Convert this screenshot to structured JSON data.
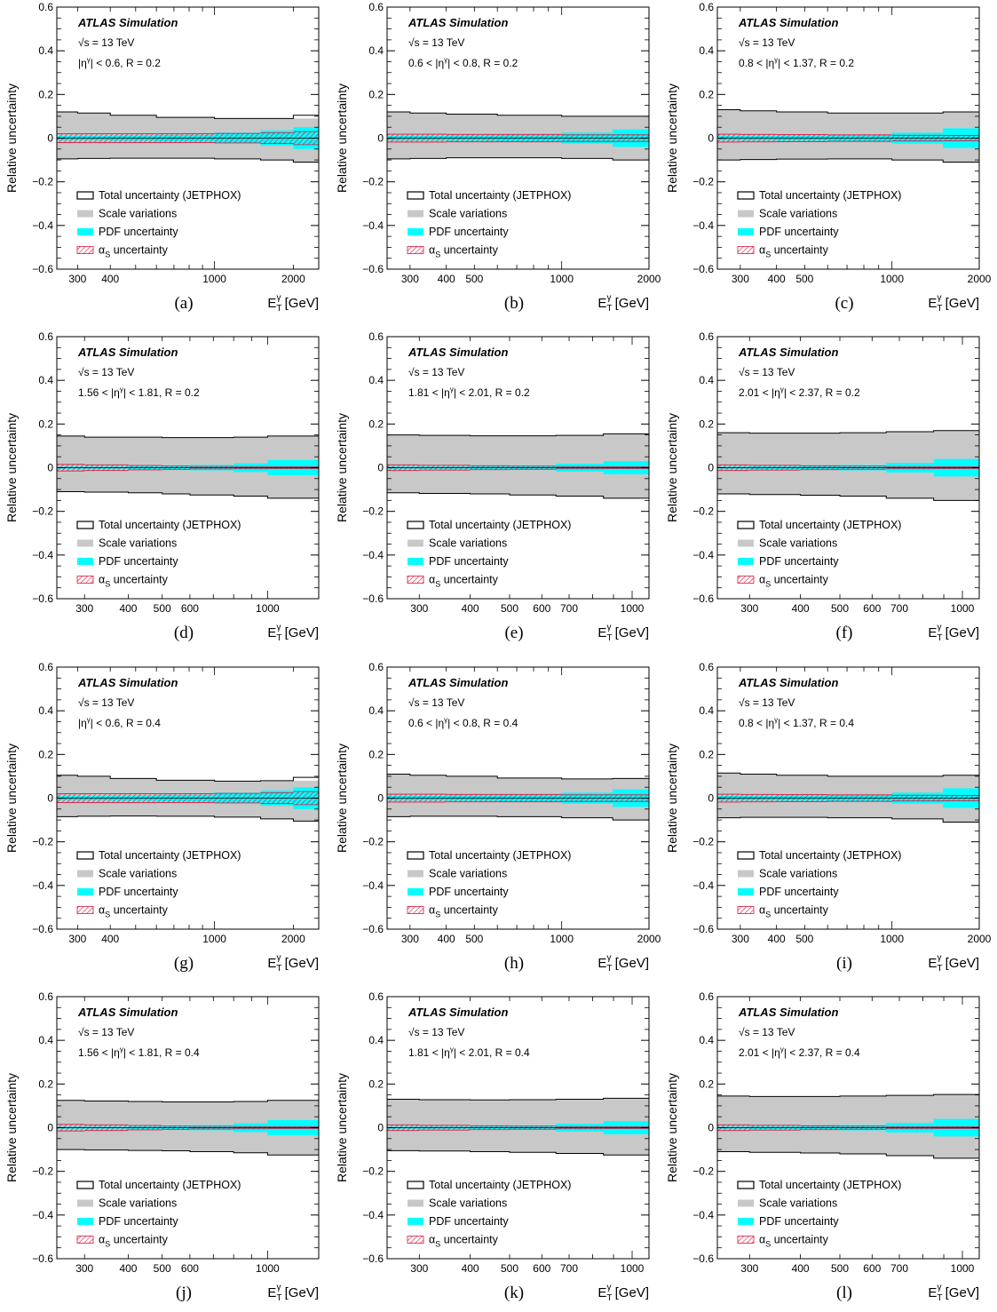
{
  "figure": {
    "label_ylabel": "Relative uncertainty",
    "atlas_label": "ATLAS Simulation",
    "energy_label": "√s = 13 TeV",
    "xlabel_main": "E",
    "xlabel_sub": "T",
    "xlabel_sup": "γ",
    "xlabel_unit": "[GeV]",
    "legend": {
      "total": "Total uncertainty (JETPHOX)",
      "scale": "Scale variations",
      "pdf": "PDF uncertainty",
      "alphas_main": "α",
      "alphas_sub": "S",
      "alphas_rest": "uncertainty"
    },
    "colors": {
      "scale": "#c8c8c8",
      "pdf": "#00ffff",
      "alphas": "#dc143c",
      "total": "#000000"
    }
  },
  "chart_data": [
    {
      "type": "area",
      "panel": "(a)",
      "region": "|η^γ| < 0.6, R = 0.2",
      "region_parts": [
        "|η",
        "γ",
        "| < 0.6, R = 0.2"
      ],
      "xscale": "log",
      "xlim": [
        250,
        2500
      ],
      "ylim": [
        -0.6,
        0.6
      ],
      "xticks": [
        300,
        400,
        1000,
        2000
      ],
      "xticklabels": [
        "300",
        "400",
        "1000",
        "2000"
      ],
      "bin_edges": [
        250,
        300,
        400,
        600,
        1000,
        1500,
        2000,
        2500
      ],
      "total_up": [
        0.12,
        0.115,
        0.105,
        0.095,
        0.09,
        0.09,
        0.105
      ],
      "total_down": [
        -0.095,
        -0.093,
        -0.092,
        -0.092,
        -0.095,
        -0.1,
        -0.11
      ],
      "scale_up": [
        0.12,
        0.115,
        0.105,
        0.095,
        0.09,
        0.09,
        0.09
      ],
      "scale_down": [
        -0.095,
        -0.093,
        -0.092,
        -0.092,
        -0.095,
        -0.1,
        -0.11
      ],
      "pdf": [
        0.01,
        0.01,
        0.012,
        0.015,
        0.025,
        0.035,
        0.05
      ],
      "alphas": [
        0.02,
        0.02,
        0.02,
        0.02,
        0.022,
        0.025,
        0.03
      ]
    },
    {
      "type": "area",
      "panel": "(b)",
      "region": "0.6 < |η^γ| < 0.8, R = 0.2",
      "region_parts": [
        "0.6 < |η",
        "γ",
        "| < 0.8, R = 0.2"
      ],
      "xscale": "log",
      "xlim": [
        250,
        2000
      ],
      "ylim": [
        -0.6,
        0.6
      ],
      "xticks": [
        300,
        400,
        500,
        1000,
        2000
      ],
      "xticklabels": [
        "300",
        "400",
        "500",
        "1000",
        "2000"
      ],
      "bin_edges": [
        250,
        300,
        400,
        600,
        1000,
        1500,
        2000
      ],
      "total_up": [
        0.12,
        0.115,
        0.11,
        0.105,
        0.1,
        0.1
      ],
      "total_down": [
        -0.095,
        -0.093,
        -0.09,
        -0.09,
        -0.093,
        -0.1
      ],
      "scale_up": [
        0.12,
        0.115,
        0.11,
        0.105,
        0.1,
        0.1
      ],
      "scale_down": [
        -0.095,
        -0.093,
        -0.09,
        -0.09,
        -0.093,
        -0.1
      ],
      "pdf": [
        0.01,
        0.01,
        0.012,
        0.015,
        0.025,
        0.04
      ],
      "alphas": [
        0.018,
        0.018,
        0.017,
        0.017,
        0.015,
        0.015
      ]
    },
    {
      "type": "area",
      "panel": "(c)",
      "region": "0.8 < |η^γ| < 1.37, R = 0.2",
      "region_parts": [
        "0.8 < |η",
        "γ",
        "| < 1.37, R = 0.2"
      ],
      "xscale": "log",
      "xlim": [
        250,
        2000
      ],
      "ylim": [
        -0.6,
        0.6
      ],
      "xticks": [
        300,
        400,
        500,
        1000,
        2000
      ],
      "xticklabels": [
        "300",
        "400",
        "500",
        "1000",
        "2000"
      ],
      "bin_edges": [
        250,
        300,
        400,
        600,
        1000,
        1500,
        2000
      ],
      "total_up": [
        0.13,
        0.125,
        0.12,
        0.115,
        0.115,
        0.12
      ],
      "total_down": [
        -0.1,
        -0.098,
        -0.096,
        -0.095,
        -0.1,
        -0.11
      ],
      "scale_up": [
        0.13,
        0.125,
        0.12,
        0.115,
        0.115,
        0.12
      ],
      "scale_down": [
        -0.1,
        -0.098,
        -0.096,
        -0.095,
        -0.1,
        -0.11
      ],
      "pdf": [
        0.01,
        0.01,
        0.012,
        0.015,
        0.025,
        0.045
      ],
      "alphas": [
        0.018,
        0.017,
        0.016,
        0.015,
        0.013,
        0.012
      ]
    },
    {
      "type": "area",
      "panel": "(d)",
      "region": "1.56 < |η^γ| < 1.81, R = 0.2",
      "region_parts": [
        "1.56 < |η",
        "γ",
        "| < 1.81, R = 0.2"
      ],
      "xscale": "log",
      "xlim": [
        250,
        1400
      ],
      "ylim": [
        -0.6,
        0.6
      ],
      "xticks": [
        300,
        400,
        500,
        600,
        1000
      ],
      "xticklabels": [
        "300",
        "400",
        "500",
        "600",
        "1000"
      ],
      "bin_edges": [
        250,
        300,
        400,
        500,
        600,
        800,
        1000,
        1400
      ],
      "total_up": [
        0.145,
        0.14,
        0.14,
        0.138,
        0.138,
        0.14,
        0.145
      ],
      "total_down": [
        -0.11,
        -0.112,
        -0.115,
        -0.12,
        -0.125,
        -0.13,
        -0.14
      ],
      "scale_up": [
        0.145,
        0.14,
        0.14,
        0.138,
        0.138,
        0.14,
        0.145
      ],
      "scale_down": [
        -0.11,
        -0.112,
        -0.115,
        -0.12,
        -0.125,
        -0.13,
        -0.14
      ],
      "pdf": [
        0.005,
        0.005,
        0.006,
        0.008,
        0.012,
        0.02,
        0.035
      ],
      "alphas": [
        0.015,
        0.013,
        0.01,
        0.008,
        0.006,
        0.005,
        0.004
      ]
    },
    {
      "type": "area",
      "panel": "(e)",
      "region": "1.81 < |η^γ| < 2.01, R = 0.2",
      "region_parts": [
        "1.81 < |η",
        "γ",
        "| < 2.01, R = 0.2"
      ],
      "xscale": "log",
      "xlim": [
        250,
        1100
      ],
      "ylim": [
        -0.6,
        0.6
      ],
      "xticks": [
        300,
        400,
        500,
        600,
        700,
        1000
      ],
      "xticklabels": [
        "300",
        "400",
        "500",
        "600",
        "700",
        "1000"
      ],
      "bin_edges": [
        250,
        300,
        400,
        500,
        650,
        850,
        1100
      ],
      "total_up": [
        0.15,
        0.148,
        0.146,
        0.146,
        0.148,
        0.155
      ],
      "total_down": [
        -0.115,
        -0.118,
        -0.12,
        -0.125,
        -0.13,
        -0.14
      ],
      "scale_up": [
        0.15,
        0.148,
        0.146,
        0.146,
        0.148,
        0.155
      ],
      "scale_down": [
        -0.115,
        -0.118,
        -0.12,
        -0.125,
        -0.13,
        -0.14
      ],
      "pdf": [
        0.005,
        0.005,
        0.006,
        0.01,
        0.018,
        0.03
      ],
      "alphas": [
        0.013,
        0.011,
        0.009,
        0.007,
        0.005,
        0.004
      ]
    },
    {
      "type": "area",
      "panel": "(f)",
      "region": "2.01 < |η^γ| < 2.37, R = 0.2",
      "region_parts": [
        "2.01 < |η",
        "γ",
        "| < 2.37, R = 0.2"
      ],
      "xscale": "log",
      "xlim": [
        250,
        1100
      ],
      "ylim": [
        -0.6,
        0.6
      ],
      "xticks": [
        300,
        400,
        500,
        600,
        700,
        1000
      ],
      "xticklabels": [
        "300",
        "400",
        "500",
        "600",
        "700",
        "1000"
      ],
      "bin_edges": [
        250,
        300,
        400,
        500,
        650,
        850,
        1100
      ],
      "total_up": [
        0.16,
        0.158,
        0.158,
        0.16,
        0.165,
        0.17
      ],
      "total_down": [
        -0.12,
        -0.123,
        -0.126,
        -0.13,
        -0.14,
        -0.15
      ],
      "scale_up": [
        0.16,
        0.158,
        0.158,
        0.16,
        0.165,
        0.17
      ],
      "scale_down": [
        -0.12,
        -0.123,
        -0.126,
        -0.13,
        -0.14,
        -0.15
      ],
      "pdf": [
        0.005,
        0.006,
        0.008,
        0.012,
        0.022,
        0.04
      ],
      "alphas": [
        0.013,
        0.011,
        0.009,
        0.007,
        0.005,
        0.004
      ]
    },
    {
      "type": "area",
      "panel": "(g)",
      "region": "|η^γ| < 0.6, R = 0.4",
      "region_parts": [
        "|η",
        "γ",
        "| < 0.6, R = 0.4"
      ],
      "xscale": "log",
      "xlim": [
        250,
        2500
      ],
      "ylim": [
        -0.6,
        0.6
      ],
      "xticks": [
        300,
        400,
        1000,
        2000
      ],
      "xticklabels": [
        "300",
        "400",
        "1000",
        "2000"
      ],
      "bin_edges": [
        250,
        300,
        400,
        600,
        1000,
        1500,
        2000,
        2500
      ],
      "total_up": [
        0.105,
        0.1,
        0.09,
        0.082,
        0.078,
        0.08,
        0.095
      ],
      "total_down": [
        -0.085,
        -0.083,
        -0.082,
        -0.083,
        -0.087,
        -0.095,
        -0.105
      ],
      "scale_up": [
        0.105,
        0.1,
        0.09,
        0.082,
        0.078,
        0.078,
        0.08
      ],
      "scale_down": [
        -0.085,
        -0.083,
        -0.082,
        -0.083,
        -0.087,
        -0.095,
        -0.105
      ],
      "pdf": [
        0.01,
        0.01,
        0.012,
        0.015,
        0.025,
        0.035,
        0.05
      ],
      "alphas": [
        0.02,
        0.02,
        0.02,
        0.02,
        0.022,
        0.025,
        0.03
      ]
    },
    {
      "type": "area",
      "panel": "(h)",
      "region": "0.6 < |η^γ| < 0.8, R = 0.4",
      "region_parts": [
        "0.6 < |η",
        "γ",
        "| < 0.8, R = 0.4"
      ],
      "xscale": "log",
      "xlim": [
        250,
        2000
      ],
      "ylim": [
        -0.6,
        0.6
      ],
      "xticks": [
        300,
        400,
        500,
        1000,
        2000
      ],
      "xticklabels": [
        "300",
        "400",
        "500",
        "1000",
        "2000"
      ],
      "bin_edges": [
        250,
        300,
        400,
        600,
        1000,
        1500,
        2000
      ],
      "total_up": [
        0.11,
        0.105,
        0.1,
        0.092,
        0.088,
        0.09
      ],
      "total_down": [
        -0.085,
        -0.083,
        -0.083,
        -0.085,
        -0.09,
        -0.1
      ],
      "scale_up": [
        0.11,
        0.105,
        0.1,
        0.092,
        0.088,
        0.09
      ],
      "scale_down": [
        -0.085,
        -0.083,
        -0.083,
        -0.085,
        -0.09,
        -0.1
      ],
      "pdf": [
        0.01,
        0.01,
        0.012,
        0.015,
        0.025,
        0.04
      ],
      "alphas": [
        0.018,
        0.018,
        0.017,
        0.017,
        0.015,
        0.015
      ]
    },
    {
      "type": "area",
      "panel": "(i)",
      "region": "0.8 < |η^γ| < 1.37, R = 0.4",
      "region_parts": [
        "0.8 < |η",
        "γ",
        "| < 1.37, R = 0.4"
      ],
      "xscale": "log",
      "xlim": [
        250,
        2000
      ],
      "ylim": [
        -0.6,
        0.6
      ],
      "xticks": [
        300,
        400,
        500,
        1000,
        2000
      ],
      "xticklabels": [
        "300",
        "400",
        "500",
        "1000",
        "2000"
      ],
      "bin_edges": [
        250,
        300,
        400,
        600,
        1000,
        1500,
        2000
      ],
      "total_up": [
        0.115,
        0.11,
        0.105,
        0.1,
        0.1,
        0.105
      ],
      "total_down": [
        -0.09,
        -0.088,
        -0.088,
        -0.09,
        -0.095,
        -0.11
      ],
      "scale_up": [
        0.115,
        0.11,
        0.105,
        0.1,
        0.1,
        0.105
      ],
      "scale_down": [
        -0.09,
        -0.088,
        -0.088,
        -0.09,
        -0.095,
        -0.11
      ],
      "pdf": [
        0.01,
        0.01,
        0.012,
        0.015,
        0.025,
        0.045
      ],
      "alphas": [
        0.018,
        0.017,
        0.016,
        0.015,
        0.013,
        0.012
      ]
    },
    {
      "type": "area",
      "panel": "(j)",
      "region": "1.56 < |η^γ| < 1.81, R = 0.4",
      "region_parts": [
        "1.56 < |η",
        "γ",
        "| < 1.81, R = 0.4"
      ],
      "xscale": "log",
      "xlim": [
        250,
        1400
      ],
      "ylim": [
        -0.6,
        0.6
      ],
      "xticks": [
        300,
        400,
        500,
        600,
        1000
      ],
      "xticklabels": [
        "300",
        "400",
        "500",
        "600",
        "1000"
      ],
      "bin_edges": [
        250,
        300,
        400,
        500,
        600,
        800,
        1000,
        1400
      ],
      "total_up": [
        0.125,
        0.122,
        0.12,
        0.118,
        0.118,
        0.12,
        0.125
      ],
      "total_down": [
        -0.1,
        -0.102,
        -0.104,
        -0.106,
        -0.11,
        -0.115,
        -0.125
      ],
      "scale_up": [
        0.125,
        0.122,
        0.12,
        0.118,
        0.118,
        0.12,
        0.125
      ],
      "scale_down": [
        -0.1,
        -0.102,
        -0.104,
        -0.106,
        -0.11,
        -0.115,
        -0.125
      ],
      "pdf": [
        0.005,
        0.005,
        0.006,
        0.008,
        0.012,
        0.02,
        0.035
      ],
      "alphas": [
        0.015,
        0.013,
        0.01,
        0.008,
        0.006,
        0.005,
        0.004
      ]
    },
    {
      "type": "area",
      "panel": "(k)",
      "region": "1.81 < |η^γ| < 2.01, R = 0.4",
      "region_parts": [
        "1.81 < |η",
        "γ",
        "| < 2.01, R = 0.4"
      ],
      "xscale": "log",
      "xlim": [
        250,
        1100
      ],
      "ylim": [
        -0.6,
        0.6
      ],
      "xticks": [
        300,
        400,
        500,
        600,
        700,
        1000
      ],
      "xticklabels": [
        "300",
        "400",
        "500",
        "600",
        "700",
        "1000"
      ],
      "bin_edges": [
        250,
        300,
        400,
        500,
        650,
        850,
        1100
      ],
      "total_up": [
        0.13,
        0.128,
        0.127,
        0.128,
        0.13,
        0.135
      ],
      "total_down": [
        -0.105,
        -0.107,
        -0.11,
        -0.113,
        -0.118,
        -0.125
      ],
      "scale_up": [
        0.13,
        0.128,
        0.127,
        0.128,
        0.13,
        0.135
      ],
      "scale_down": [
        -0.105,
        -0.107,
        -0.11,
        -0.113,
        -0.118,
        -0.125
      ],
      "pdf": [
        0.005,
        0.005,
        0.006,
        0.01,
        0.018,
        0.03
      ],
      "alphas": [
        0.013,
        0.011,
        0.009,
        0.007,
        0.005,
        0.004
      ]
    },
    {
      "type": "area",
      "panel": "(l)",
      "region": "2.01 < |η^γ| < 2.37, R = 0.4",
      "region_parts": [
        "2.01 < |η",
        "γ",
        "| < 2.37, R = 0.4"
      ],
      "xscale": "log",
      "xlim": [
        250,
        1100
      ],
      "ylim": [
        -0.6,
        0.6
      ],
      "xticks": [
        300,
        400,
        500,
        600,
        700,
        1000
      ],
      "xticklabels": [
        "300",
        "400",
        "500",
        "600",
        "700",
        "1000"
      ],
      "bin_edges": [
        250,
        300,
        400,
        500,
        650,
        850,
        1100
      ],
      "total_up": [
        0.145,
        0.143,
        0.143,
        0.145,
        0.148,
        0.152
      ],
      "total_down": [
        -0.11,
        -0.113,
        -0.116,
        -0.12,
        -0.128,
        -0.14
      ],
      "scale_up": [
        0.145,
        0.143,
        0.143,
        0.145,
        0.148,
        0.152
      ],
      "scale_down": [
        -0.11,
        -0.113,
        -0.116,
        -0.12,
        -0.128,
        -0.14
      ],
      "pdf": [
        0.005,
        0.006,
        0.008,
        0.012,
        0.022,
        0.04
      ],
      "alphas": [
        0.013,
        0.011,
        0.009,
        0.007,
        0.005,
        0.004
      ]
    }
  ]
}
